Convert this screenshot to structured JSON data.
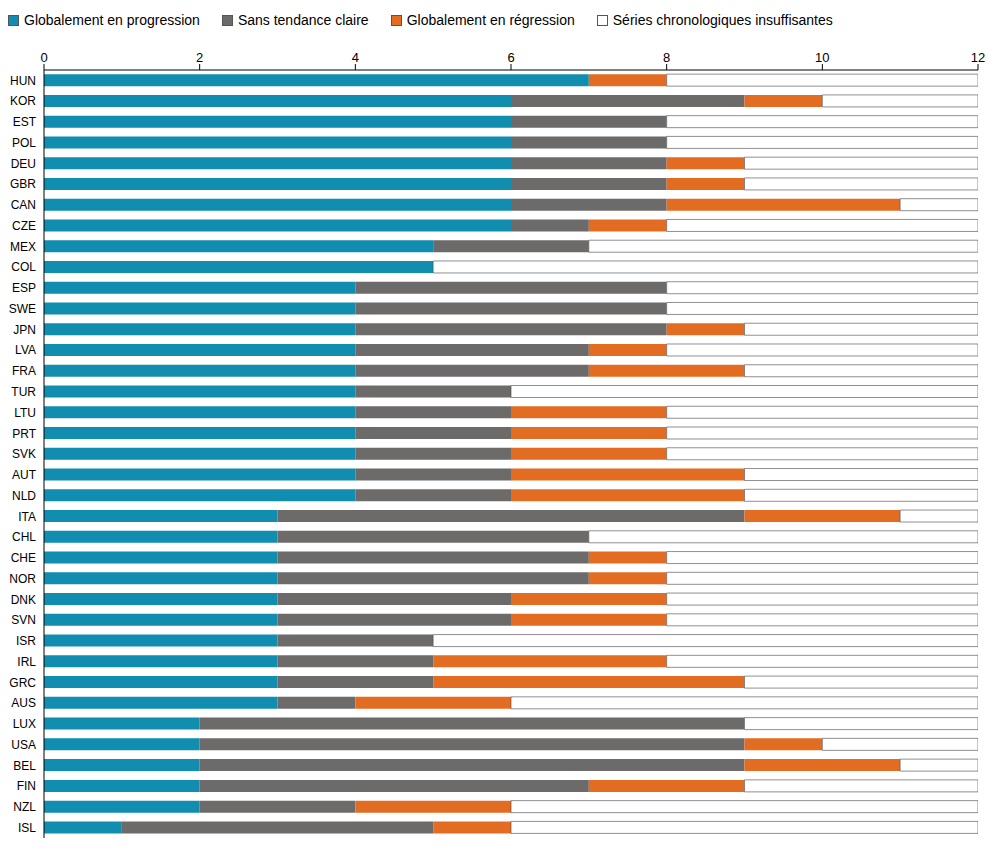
{
  "chart_data": {
    "type": "bar",
    "orientation": "horizontal",
    "stacked": true,
    "grid": false,
    "legend": "top",
    "categories": [
      "HUN",
      "KOR",
      "EST",
      "POL",
      "DEU",
      "GBR",
      "CAN",
      "CZE",
      "MEX",
      "COL",
      "ESP",
      "SWE",
      "JPN",
      "LVA",
      "FRA",
      "TUR",
      "LTU",
      "PRT",
      "SVK",
      "AUT",
      "NLD",
      "ITA",
      "CHL",
      "CHE",
      "NOR",
      "DNK",
      "SVN",
      "ISR",
      "IRL",
      "GRC",
      "AUS",
      "LUX",
      "USA",
      "BEL",
      "FIN",
      "NZL",
      "ISL"
    ],
    "xlim": [
      0,
      12
    ],
    "xticks": [
      0,
      2,
      4,
      6,
      8,
      10,
      12
    ],
    "series": [
      {
        "name": "Globalement en progression",
        "color": "#118db0",
        "values": [
          7,
          6,
          6,
          6,
          6,
          6,
          6,
          6,
          5,
          5,
          4,
          4,
          4,
          4,
          4,
          4,
          4,
          4,
          4,
          4,
          4,
          3,
          3,
          3,
          3,
          3,
          3,
          3,
          3,
          3,
          3,
          2,
          2,
          2,
          2,
          2,
          1
        ]
      },
      {
        "name": "Sans tendance claire",
        "color": "#6d6a6a",
        "values": [
          0,
          3,
          2,
          2,
          2,
          2,
          2,
          1,
          2,
          0,
          4,
          4,
          4,
          3,
          3,
          2,
          2,
          2,
          2,
          2,
          2,
          6,
          4,
          4,
          4,
          3,
          3,
          2,
          2,
          2,
          1,
          7,
          7,
          7,
          5,
          2,
          4
        ]
      },
      {
        "name": "Globalement en régression",
        "color": "#e36c23",
        "values": [
          1,
          1,
          0,
          0,
          1,
          1,
          3,
          1,
          0,
          0,
          0,
          0,
          1,
          1,
          2,
          0,
          2,
          2,
          2,
          3,
          3,
          2,
          0,
          1,
          1,
          2,
          2,
          0,
          3,
          4,
          2,
          0,
          1,
          2,
          2,
          2,
          1
        ]
      },
      {
        "name": "Séries chronologiques insuffisantes",
        "color": "#ffffff",
        "values": [
          4,
          2,
          4,
          4,
          3,
          3,
          1,
          4,
          5,
          7,
          4,
          4,
          3,
          4,
          3,
          6,
          4,
          4,
          4,
          3,
          3,
          1,
          5,
          4,
          4,
          4,
          4,
          7,
          4,
          3,
          6,
          3,
          2,
          1,
          3,
          6,
          6
        ]
      }
    ]
  }
}
